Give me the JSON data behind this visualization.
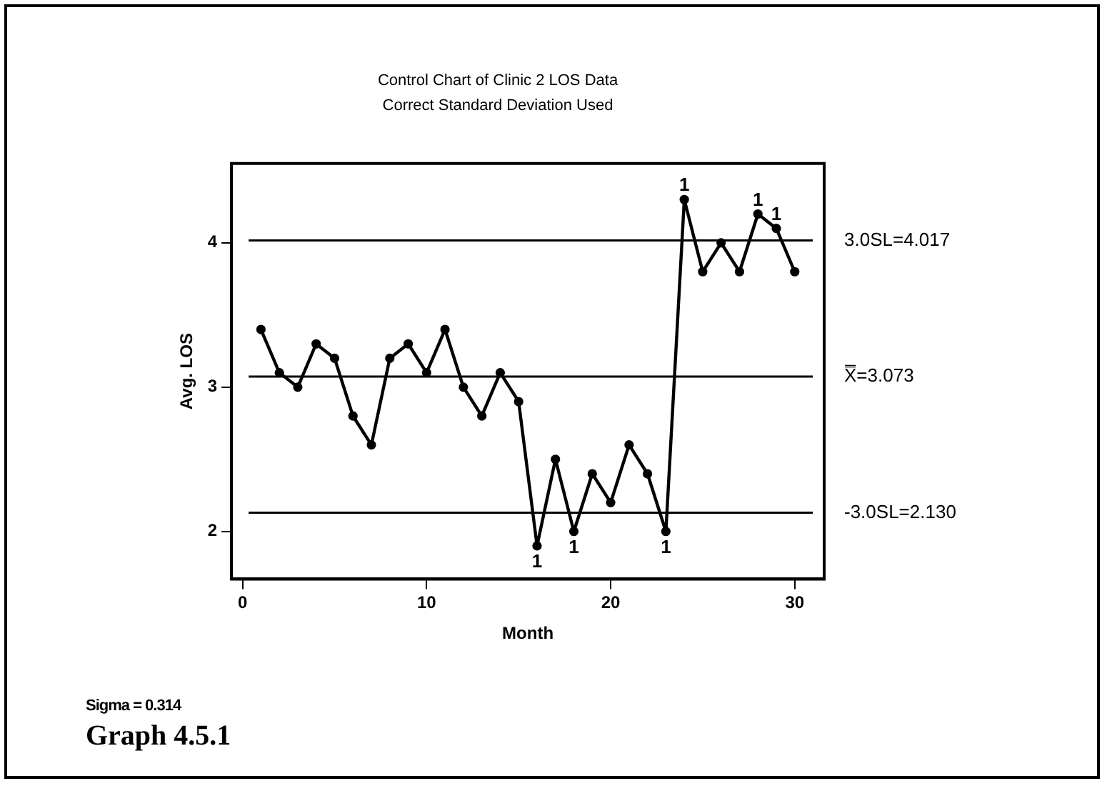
{
  "chart_data": {
    "type": "line",
    "title": "Control Chart of Clinic 2 LOS Data",
    "subtitle": "Correct Standard Deviation Used",
    "xlabel": "Month",
    "ylabel": "Avg. LOS",
    "x": [
      1,
      2,
      3,
      4,
      5,
      6,
      7,
      8,
      9,
      10,
      11,
      12,
      13,
      14,
      15,
      16,
      17,
      18,
      19,
      20,
      21,
      22,
      23,
      24,
      25,
      26,
      27,
      28,
      29,
      30
    ],
    "values": [
      3.4,
      3.1,
      3.0,
      3.3,
      3.2,
      2.8,
      2.6,
      3.2,
      3.3,
      3.1,
      3.4,
      3.0,
      2.8,
      3.1,
      2.9,
      1.9,
      2.5,
      2.0,
      2.4,
      2.2,
      2.6,
      2.4,
      2.0,
      4.3,
      3.8,
      4.0,
      3.8,
      4.2,
      4.1,
      3.8
    ],
    "color": "#000000",
    "marker": "circle",
    "line_style": "solid",
    "grid": false,
    "legend": false,
    "xlim": [
      -0.6,
      31.6
    ],
    "xticks": [
      0,
      10,
      20,
      30
    ],
    "ylim": [
      1.67,
      4.55
    ],
    "yticks": [
      2,
      3,
      4
    ],
    "ref_lines": [
      {
        "axis": "y",
        "value": 4.017,
        "label": "3.0SL=4.017",
        "color": "#000000"
      },
      {
        "axis": "y",
        "value": 3.073,
        "label": "X̿=3.073",
        "color": "#000000"
      },
      {
        "axis": "y",
        "value": 2.13,
        "label": "-3.0SL=2.130",
        "color": "#000000"
      }
    ],
    "annotations": [
      {
        "text": "1",
        "x": 16,
        "y": 1.9
      },
      {
        "text": "1",
        "x": 18,
        "y": 2.0
      },
      {
        "text": "1",
        "x": 23,
        "y": 2.0
      },
      {
        "text": "1",
        "x": 24,
        "y": 4.3
      },
      {
        "text": "1",
        "x": 28,
        "y": 4.2
      },
      {
        "text": "1",
        "x": 29,
        "y": 4.1
      },
      "Sigma = 0.314",
      "Graph 4.5.1"
    ]
  }
}
